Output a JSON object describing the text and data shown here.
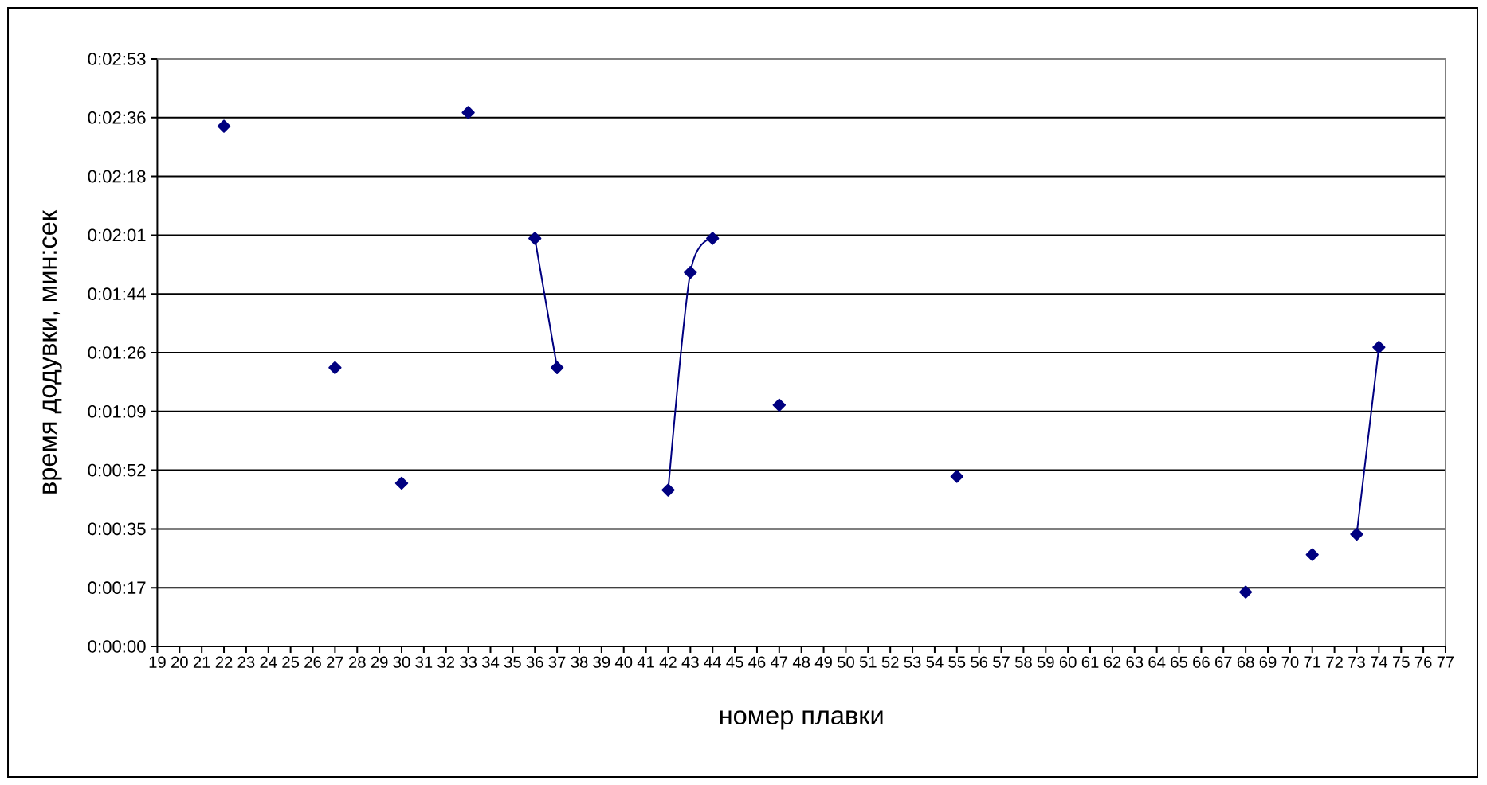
{
  "chart_data": {
    "type": "line",
    "xlabel": "номер плавки",
    "ylabel": "время додувки, мин:сек",
    "categories": [
      "19",
      "20",
      "21",
      "22",
      "23",
      "24",
      "25",
      "26",
      "27",
      "28",
      "29",
      "30",
      "31",
      "32",
      "33",
      "34",
      "35",
      "36",
      "37",
      "38",
      "39",
      "40",
      "41",
      "42",
      "43",
      "44",
      "45",
      "46",
      "47",
      "48",
      "49",
      "50",
      "51",
      "52",
      "53",
      "54",
      "55",
      "56",
      "57",
      "58",
      "59",
      "60",
      "61",
      "62",
      "63",
      "64",
      "65",
      "66",
      "67",
      "68",
      "69",
      "70",
      "71",
      "72",
      "73",
      "74",
      "75",
      "76",
      "77"
    ],
    "values": [
      null,
      null,
      null,
      153,
      null,
      null,
      null,
      null,
      82,
      null,
      null,
      48,
      null,
      null,
      157,
      null,
      null,
      120,
      82,
      null,
      null,
      null,
      null,
      46,
      110,
      120,
      null,
      null,
      71,
      null,
      null,
      null,
      null,
      null,
      null,
      null,
      50,
      null,
      null,
      null,
      null,
      null,
      null,
      null,
      null,
      null,
      null,
      null,
      null,
      16,
      null,
      null,
      27,
      null,
      33,
      88,
      null,
      null,
      null
    ],
    "color": "#000080",
    "ylim": [
      0,
      172.8
    ],
    "yticks": [
      {
        "value": 0,
        "label": "0:00:00"
      },
      {
        "value": 17.28,
        "label": "0:00:17"
      },
      {
        "value": 34.56,
        "label": "0:00:35"
      },
      {
        "value": 51.84,
        "label": "0:00:52"
      },
      {
        "value": 69.12,
        "label": "0:01:09"
      },
      {
        "value": 86.4,
        "label": "0:01:26"
      },
      {
        "value": 103.68,
        "label": "0:01:44"
      },
      {
        "value": 120.96,
        "label": "0:02:01"
      },
      {
        "value": 138.24,
        "label": "0:02:18"
      },
      {
        "value": 155.52,
        "label": "0:02:36"
      },
      {
        "value": 172.8,
        "label": "0:02:53"
      }
    ],
    "grid": "y",
    "legend": false,
    "marker": "diamond",
    "line_style": "solid"
  }
}
